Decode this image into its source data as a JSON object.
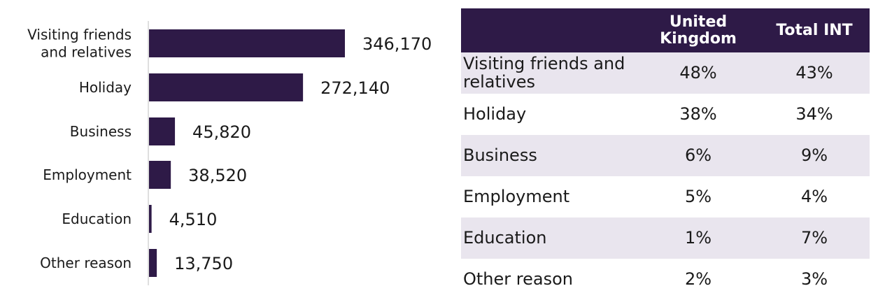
{
  "chart_data": {
    "type": "bar",
    "orientation": "horizontal",
    "categories": [
      [
        "Visiting friends",
        "and relatives"
      ],
      [
        "Holiday"
      ],
      [
        "Business"
      ],
      [
        "Employment"
      ],
      [
        "Education"
      ],
      [
        "Other reason"
      ]
    ],
    "values": [
      346170,
      272140,
      45820,
      38520,
      4510,
      13750
    ],
    "value_labels": [
      "346,170",
      "272,140",
      "45,820",
      "38,520",
      "4,510",
      "13,750"
    ],
    "colors": {
      "bar": "#2e1a47",
      "axis": "#bfbfbf"
    }
  },
  "table": {
    "headers": [
      "",
      "United Kingdom",
      "Total INT"
    ],
    "rows": [
      {
        "label": "Visiting friends and relatives",
        "uk": "48%",
        "int": "43%"
      },
      {
        "label": "Holiday",
        "uk": "38%",
        "int": "34%"
      },
      {
        "label": "Business",
        "uk": "6%",
        "int": "9%"
      },
      {
        "label": "Employment",
        "uk": "5%",
        "int": "4%"
      },
      {
        "label": "Education",
        "uk": "1%",
        "int": "7%"
      },
      {
        "label": "Other reason",
        "uk": "2%",
        "int": "3%"
      }
    ],
    "colors": {
      "header_bg": "#2e1a47",
      "header_text": "#ffffff",
      "stripe": "#e9e5ee"
    }
  }
}
